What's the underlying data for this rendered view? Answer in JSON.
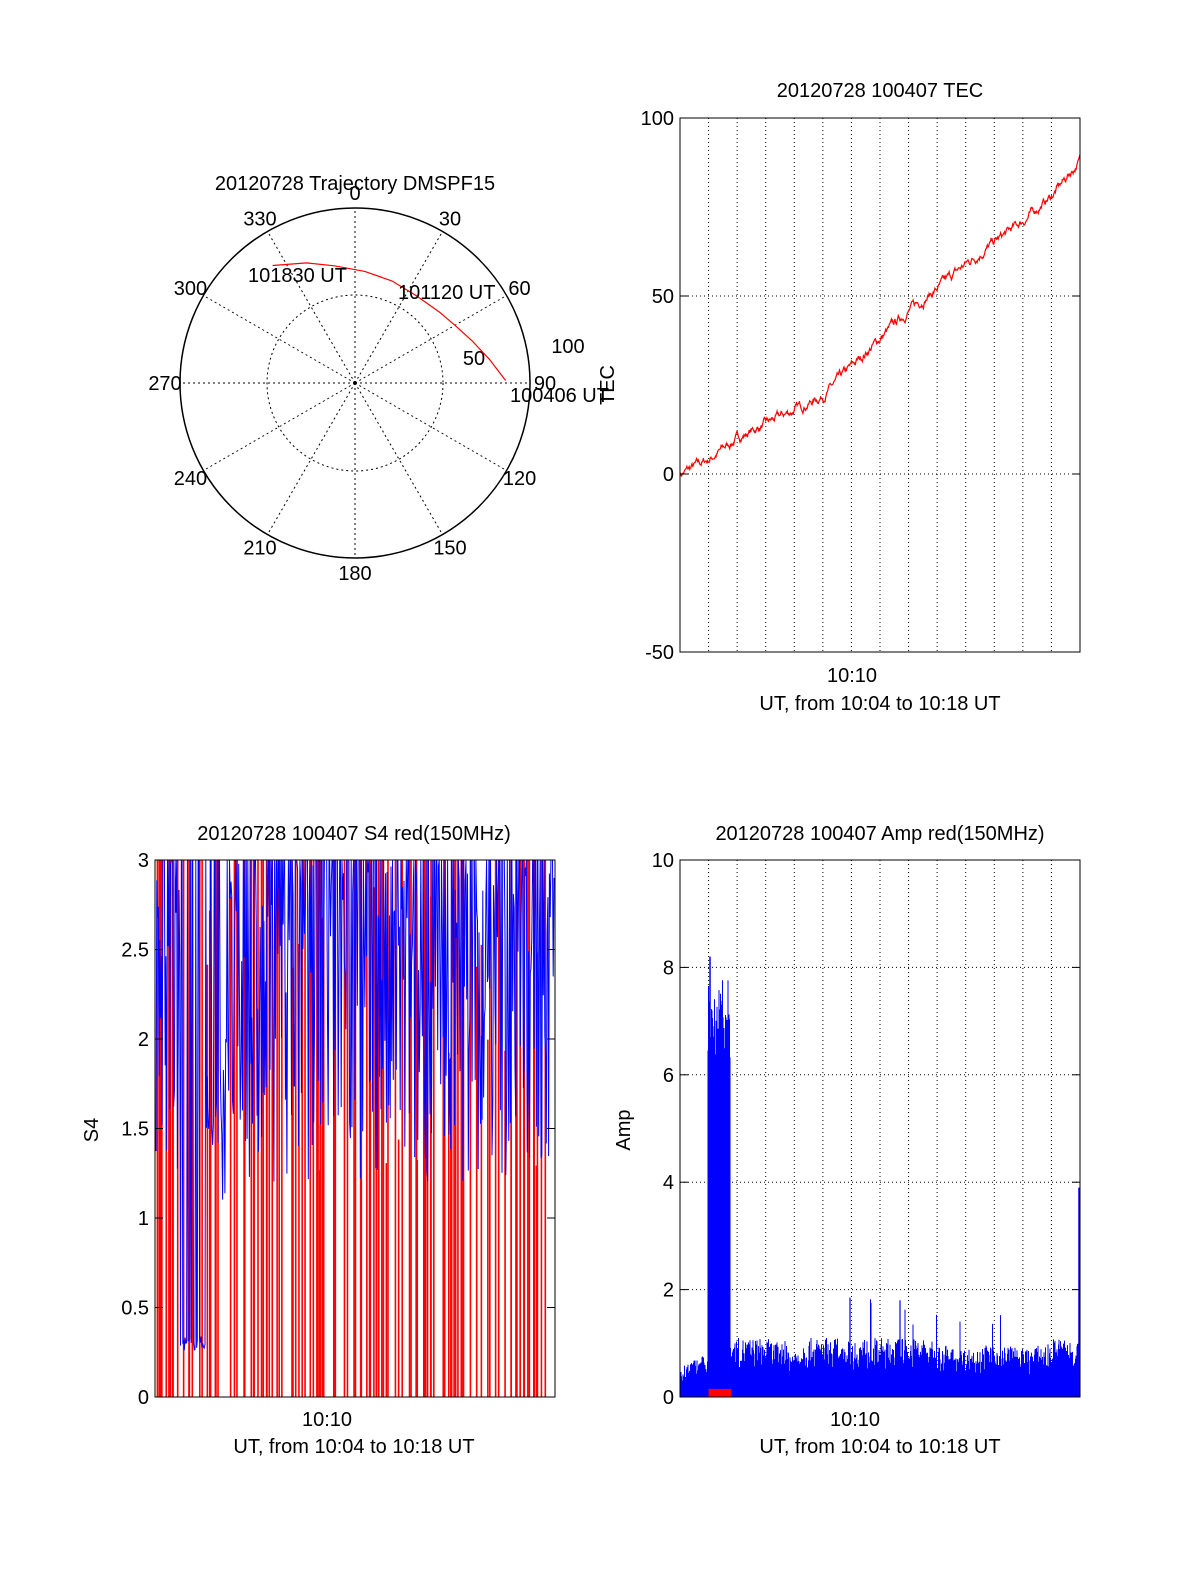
{
  "colors": {
    "red": "#ff0000",
    "blue": "#0000ff",
    "axis": "#000000",
    "grid": "#000000"
  },
  "chart_data": [
    {
      "id": "trajectory",
      "type": "polar",
      "title": "20120728 Trajectory DMSPF15",
      "azimuth_labels": [
        "0",
        "30",
        "60",
        "90",
        "120",
        "150",
        "180",
        "210",
        "240",
        "270",
        "300",
        "330"
      ],
      "radial_labels": [
        "50",
        "100"
      ],
      "rlim": [
        0,
        100
      ],
      "track_color": "red",
      "track": [
        {
          "az": 89,
          "r": 86,
          "label": "100406 UT"
        },
        {
          "az": 80,
          "r": 78
        },
        {
          "az": 70,
          "r": 71
        },
        {
          "az": 60,
          "r": 66
        },
        {
          "az": 50,
          "r": 63,
          "label": "101120 UT"
        },
        {
          "az": 35,
          "r": 61
        },
        {
          "az": 20,
          "r": 62
        },
        {
          "az": 5,
          "r": 64
        },
        {
          "az": 350,
          "r": 68
        },
        {
          "az": 338,
          "r": 74
        },
        {
          "az": 325,
          "r": 82,
          "label": "101830 UT"
        }
      ]
    },
    {
      "id": "tec",
      "type": "line",
      "title": "20120728 100407 TEC",
      "ylabel": "TEC",
      "xlabel": "UT, from 10:04 to 10:18 UT",
      "xtick_labels": [
        "10:10"
      ],
      "yticks": [
        -50,
        0,
        50,
        100
      ],
      "ylim": [
        -50,
        100
      ],
      "grid": true,
      "series": [
        {
          "color": "red",
          "x": [
            "10:04",
            "10:05",
            "10:06",
            "10:07",
            "10:08",
            "10:09",
            "10:10",
            "10:11",
            "10:12",
            "10:13",
            "10:14",
            "10:15",
            "10:16",
            "10:17",
            "10:18"
          ],
          "values": [
            0,
            4,
            10,
            14,
            18,
            22,
            30,
            38,
            46,
            52,
            59,
            65,
            71,
            78,
            88
          ]
        }
      ]
    },
    {
      "id": "s4",
      "type": "line",
      "title": "20120728 100407 S4 red(150MHz)",
      "ylabel": "S4",
      "xlabel": "UT, from 10:04 to 10:18 UT",
      "xtick_labels": [
        "10:10"
      ],
      "yticks": [
        0,
        0.5,
        1,
        1.5,
        2,
        2.5,
        3
      ],
      "ylim": [
        0,
        3
      ],
      "grid": false,
      "series": [
        {
          "color": "red",
          "note": "dense spikes spanning 0–3 across the interval"
        },
        {
          "color": "blue",
          "note": "dense spikes mostly between 1 and 3, low segment near 0.3 around 10:05"
        }
      ]
    },
    {
      "id": "amp",
      "type": "line",
      "title": "20120728 100407 Amp red(150MHz)",
      "ylabel": "Amp",
      "xlabel": "UT, from 10:04 to 10:18 UT",
      "xtick_labels": [
        "10:10"
      ],
      "yticks": [
        0,
        2,
        4,
        6,
        8,
        10
      ],
      "ylim": [
        0,
        10
      ],
      "grid": true,
      "series": [
        {
          "color": "blue",
          "x": [
            "10:04",
            "10:05",
            "10:05:30",
            "10:06",
            "10:07",
            "10:08",
            "10:09",
            "10:10",
            "10:11",
            "10:12",
            "10:13",
            "10:14",
            "10:15",
            "10:16",
            "10:17",
            "10:18"
          ],
          "values": [
            0.6,
            0.8,
            8.2,
            1.6,
            1.1,
            0.9,
            1.4,
            1.0,
            1.8,
            1.2,
            1.0,
            0.9,
            1.0,
            0.9,
            1.0,
            3.9
          ]
        },
        {
          "color": "red",
          "x": [
            "10:05",
            "10:05:48"
          ],
          "values": [
            0.15,
            0.15
          ]
        }
      ]
    }
  ]
}
